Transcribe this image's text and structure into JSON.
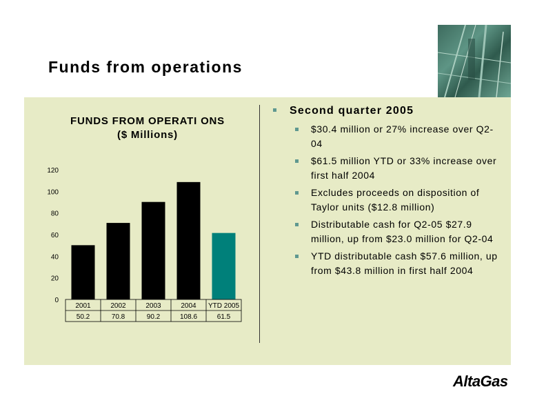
{
  "slide": {
    "title": "Funds from operations",
    "logo_text": "AltaGas"
  },
  "chart_data": {
    "type": "bar",
    "title_line1": "FUNDS FROM OPERATI ONS",
    "title_line2": "($ Millions)",
    "categories": [
      "2001",
      "2002",
      "2003",
      "2004",
      "YTD 2005"
    ],
    "values": [
      50.2,
      70.8,
      90.2,
      108.6,
      61.5
    ],
    "value_labels": [
      "50.2",
      "70.8",
      "90.2",
      "108.6",
      "61.5"
    ],
    "ylim": [
      0,
      120
    ],
    "yticks": [
      0,
      20,
      40,
      60,
      80,
      100,
      120
    ],
    "bar_colors": [
      "#000000",
      "#000000",
      "#000000",
      "#000000",
      "#00807a"
    ],
    "grid": false,
    "legend": "none"
  },
  "bullets": {
    "heading": "Second quarter 2005",
    "items": [
      "$30.4 million or 27% increase over Q2-04",
      "$61.5 million YTD or 33% increase over first half 2004",
      "Excludes proceeds on disposition of Taylor units ($12.8 million)",
      "Distributable cash for Q2-05 $27.9 million, up from $23.0 million for Q2-04",
      "YTD distributable cash $57.6 million, up from $43.8 million in first half 2004"
    ]
  },
  "colors": {
    "panel": "#e7ebc6",
    "bullet_marker": "#5f9890",
    "accent_bar": "#00807a"
  }
}
